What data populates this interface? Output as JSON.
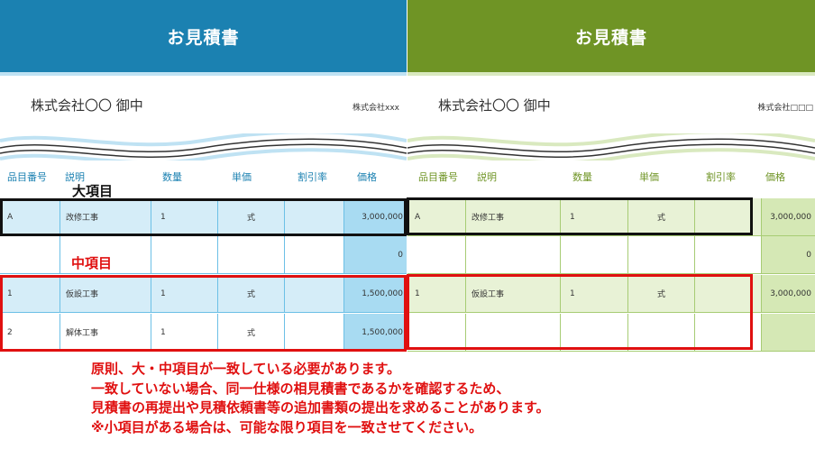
{
  "left": {
    "title": "お見積書",
    "to": "株式会社〇〇 御中",
    "from": "株式会社xxx",
    "columns": [
      "品目番号",
      "説明",
      "数量",
      "単価",
      "割引率",
      "価格"
    ],
    "rows": [
      [
        "A",
        "改修工事",
        "1",
        "式",
        "",
        "3,000,000"
      ],
      [
        "",
        "",
        "",
        "",
        "",
        "0"
      ],
      [
        "1",
        "仮設工事",
        "1",
        "式",
        "",
        "1,500,000"
      ],
      [
        "2",
        "解体工事",
        "1",
        "式",
        "",
        "1,500,000"
      ]
    ],
    "colors": {
      "header": "#1b81b1",
      "row_tint": "#d5edf8",
      "price_tint": "#a8dbf2",
      "border": "#6cc0e6"
    }
  },
  "right": {
    "title": "お見積書",
    "to": "株式会社〇〇 御中",
    "from": "株式会社□□□",
    "columns": [
      "品目番号",
      "説明",
      "数量",
      "単価",
      "割引率",
      "価格"
    ],
    "rows": [
      [
        "A",
        "改修工事",
        "1",
        "式",
        "",
        "3,000,000"
      ],
      [
        "",
        "",
        "",
        "",
        "",
        "0"
      ],
      [
        "1",
        "仮設工事",
        "1",
        "式",
        "",
        "3,000,000"
      ],
      [
        "",
        "",
        "",
        "",
        "",
        ""
      ]
    ],
    "colors": {
      "header": "#6f9425",
      "row_tint": "#e8f2d6",
      "price_tint": "#d5e8b5",
      "border": "#a7cc74"
    }
  },
  "annotations": {
    "major_item": "大項目",
    "middle_item": "中項目"
  },
  "notes": [
    "原則、大・中項目が一致している必要があります。",
    "一致していない場合、同一仕様の相見積書であるかを確認するため、",
    "見積書の再提出や見積依頼書等の追加書類の提出を求めることがあります。",
    "※小項目がある場合は、可能な限り項目を一致させてください。"
  ]
}
